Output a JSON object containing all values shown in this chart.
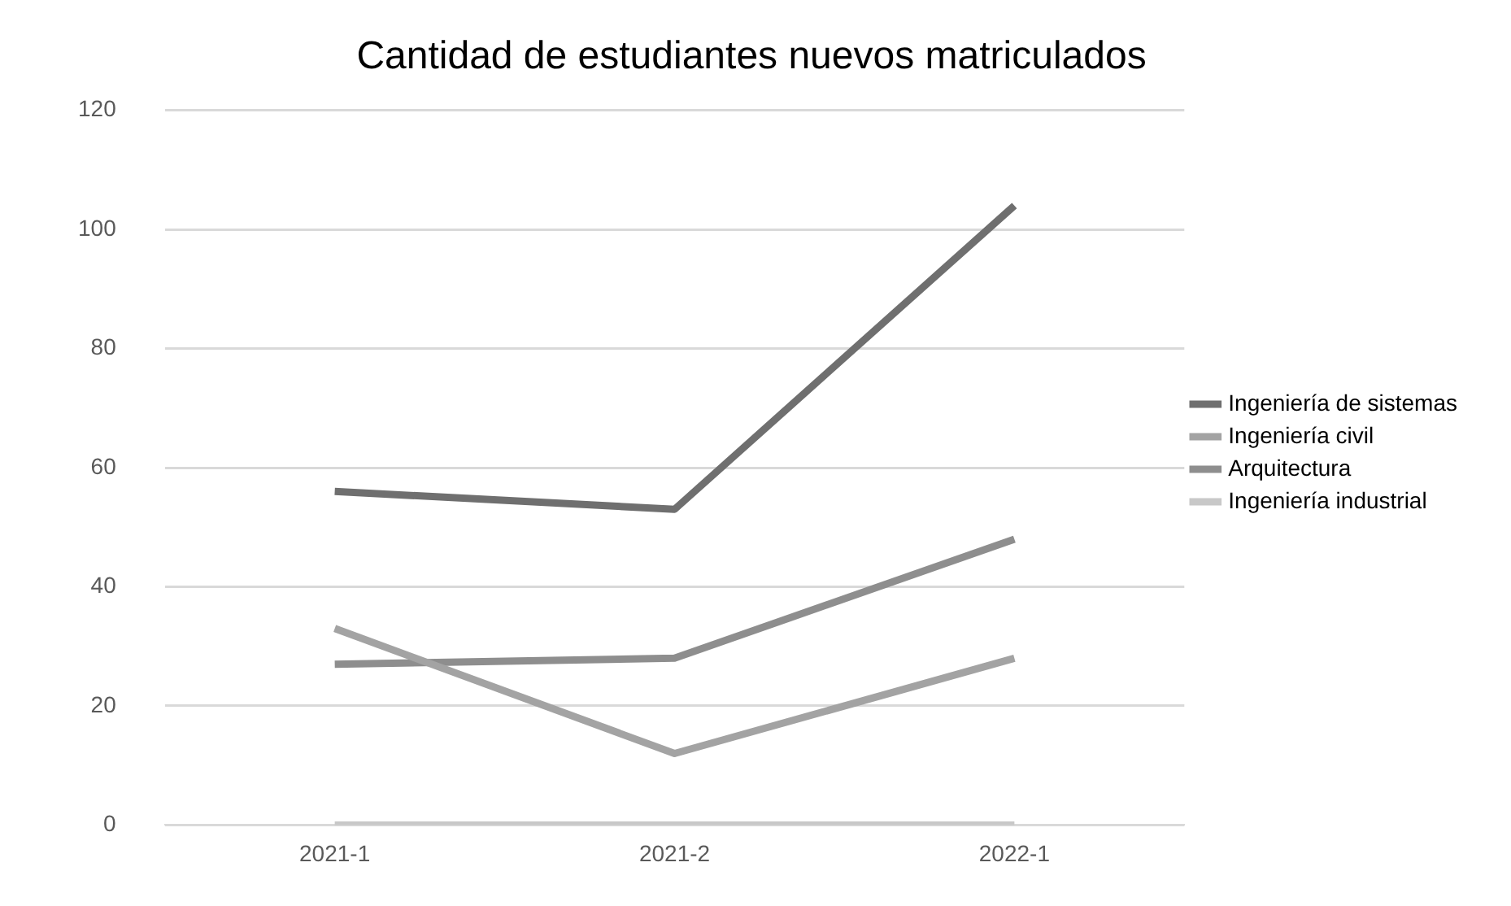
{
  "chart_data": {
    "type": "line",
    "title": "Cantidad de estudiantes nuevos matriculados",
    "categories": [
      "2021-1",
      "2021-2",
      "2022-1"
    ],
    "series": [
      {
        "name": "Ingeniería de sistemas",
        "color": "#6f6f6f",
        "values": [
          56,
          53,
          104
        ]
      },
      {
        "name": "Ingeniería civil",
        "color": "#a3a3a3",
        "values": [
          33,
          12,
          28
        ]
      },
      {
        "name": "Arquitectura",
        "color": "#8e8e8e",
        "values": [
          27,
          28,
          48
        ]
      },
      {
        "name": "Ingeniería industrial",
        "color": "#c8c8c8",
        "values": [
          0,
          0,
          0
        ]
      }
    ],
    "ylim": [
      0,
      120
    ],
    "yticks": [
      0,
      20,
      40,
      60,
      80,
      100,
      120
    ],
    "grid": "y",
    "legend": "right",
    "marker": "none",
    "line_style": "solid"
  }
}
